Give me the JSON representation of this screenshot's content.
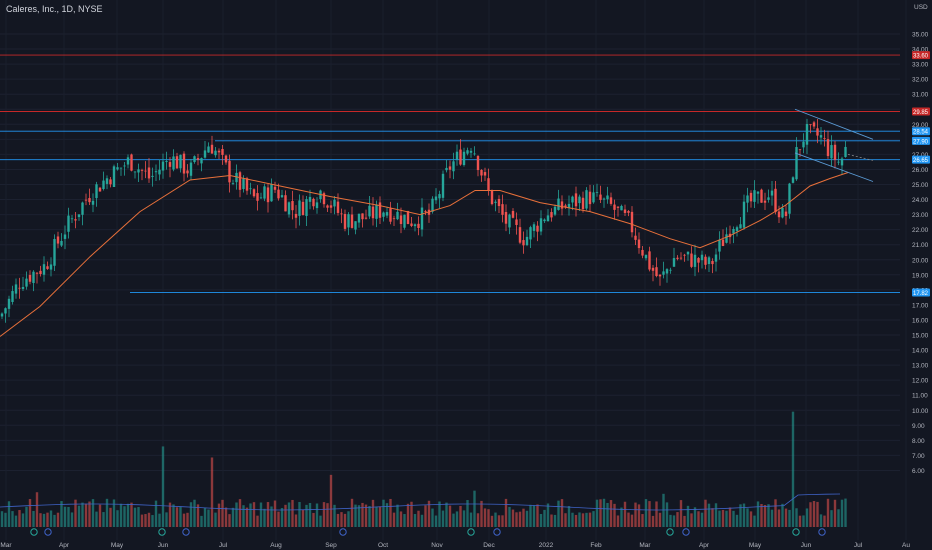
{
  "header": {
    "symbol_label": "Caleres, Inc., 1D, NYSE"
  },
  "chart_data": {
    "type": "candlestick",
    "currency_label": "USD",
    "y_ticks": [
      "35.00",
      "34.00",
      "33.00",
      "32.00",
      "31.00",
      "30.00",
      "29.00",
      "28.00",
      "27.00",
      "26.00",
      "25.00",
      "24.00",
      "23.00",
      "22.00",
      "21.00",
      "20.00",
      "19.00",
      "18.00",
      "17.00",
      "16.00",
      "15.00",
      "14.00",
      "13.00",
      "12.00",
      "11.00",
      "10.00",
      "9.00",
      "8.00",
      "7.00",
      "6.00"
    ],
    "ylim": [
      5.6,
      35.6
    ],
    "x_ticks": [
      "Mar",
      "Apr",
      "May",
      "Jun",
      "Jul",
      "Aug",
      "Sep",
      "Oct",
      "Nov",
      "Dec",
      "2022",
      "Feb",
      "Mar",
      "Apr",
      "May",
      "Jun",
      "Jul",
      "Au"
    ],
    "horizontal_levels": [
      {
        "value": 33.6,
        "label": "33.60",
        "color": "#c62828"
      },
      {
        "value": 29.85,
        "label": "29.85",
        "color": "#c62828"
      },
      {
        "value": 28.54,
        "label": "28.54",
        "color": "#2196f3"
      },
      {
        "value": 27.9,
        "label": "27.90",
        "color": "#2196f3"
      },
      {
        "value": 26.65,
        "label": "26.65",
        "color": "#2196f3"
      },
      {
        "value": 17.82,
        "label": "17.82",
        "color": "#2196f3"
      }
    ],
    "price_path": [
      [
        0,
        16.2
      ],
      [
        20,
        18.6
      ],
      [
        45,
        19.6
      ],
      [
        65,
        22.0
      ],
      [
        90,
        24.4
      ],
      [
        110,
        25.6
      ],
      [
        130,
        26.6
      ],
      [
        150,
        25.4
      ],
      [
        170,
        26.8
      ],
      [
        190,
        25.9
      ],
      [
        210,
        27.8
      ],
      [
        230,
        25.6
      ],
      [
        255,
        24.0
      ],
      [
        275,
        24.7
      ],
      [
        295,
        23.2
      ],
      [
        320,
        24.6
      ],
      [
        345,
        22.6
      ],
      [
        365,
        22.8
      ],
      [
        385,
        23.4
      ],
      [
        410,
        22.6
      ],
      [
        430,
        23.0
      ],
      [
        450,
        26.2
      ],
      [
        472,
        27.8
      ],
      [
        488,
        24.5
      ],
      [
        505,
        22.6
      ],
      [
        525,
        21.4
      ],
      [
        545,
        23.0
      ],
      [
        565,
        23.6
      ],
      [
        590,
        24.2
      ],
      [
        610,
        23.6
      ],
      [
        630,
        22.4
      ],
      [
        650,
        19.6
      ],
      [
        660,
        18.6
      ],
      [
        675,
        20.2
      ],
      [
        695,
        20.0
      ],
      [
        710,
        19.6
      ],
      [
        730,
        22.2
      ],
      [
        750,
        23.8
      ],
      [
        770,
        24.4
      ],
      [
        785,
        22.6
      ],
      [
        795,
        26.8
      ],
      [
        805,
        28.4
      ],
      [
        820,
        28.2
      ],
      [
        832,
        27.0
      ],
      [
        840,
        26.4
      ],
      [
        848,
        27.8
      ]
    ],
    "moving_average": [
      [
        0,
        14.9
      ],
      [
        40,
        16.9
      ],
      [
        90,
        20.2
      ],
      [
        140,
        23.2
      ],
      [
        190,
        25.3
      ],
      [
        230,
        25.6
      ],
      [
        280,
        24.9
      ],
      [
        330,
        24.2
      ],
      [
        380,
        23.6
      ],
      [
        420,
        23.0
      ],
      [
        450,
        23.6
      ],
      [
        475,
        24.6
      ],
      [
        500,
        24.6
      ],
      [
        540,
        23.8
      ],
      [
        590,
        23.2
      ],
      [
        630,
        22.4
      ],
      [
        670,
        21.4
      ],
      [
        700,
        20.8
      ],
      [
        730,
        21.6
      ],
      [
        760,
        22.6
      ],
      [
        785,
        23.6
      ],
      [
        810,
        24.9
      ],
      [
        830,
        25.4
      ],
      [
        848,
        25.8
      ]
    ],
    "volume_spikes": [
      [
        40,
        7.8
      ],
      [
        165,
        10.7
      ],
      [
        213,
        10.0
      ],
      [
        333,
        8.9
      ],
      [
        476,
        7.9
      ],
      [
        666,
        7.7
      ],
      [
        795,
        12.9
      ],
      [
        848,
        7.4
      ]
    ]
  }
}
